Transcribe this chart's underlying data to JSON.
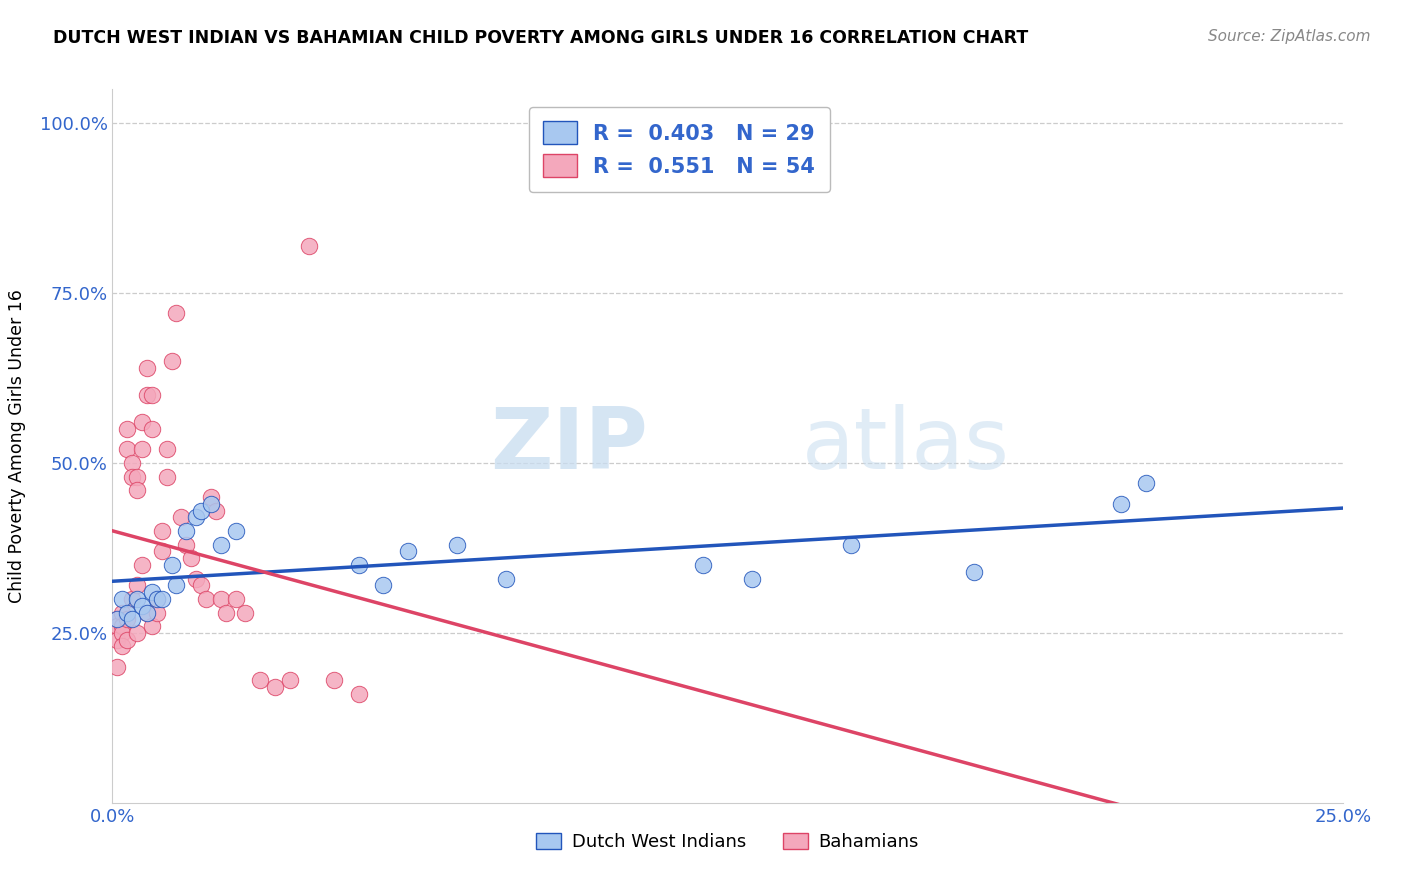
{
  "title": "DUTCH WEST INDIAN VS BAHAMIAN CHILD POVERTY AMONG GIRLS UNDER 16 CORRELATION CHART",
  "source": "Source: ZipAtlas.com",
  "ylabel": "Child Poverty Among Girls Under 16",
  "xlim": [
    0.0,
    0.25
  ],
  "ylim": [
    0.0,
    1.05
  ],
  "xticks": [
    0.0,
    0.05,
    0.1,
    0.15,
    0.2,
    0.25
  ],
  "xticklabels": [
    "0.0%",
    "",
    "",
    "",
    "",
    "25.0%"
  ],
  "yticks": [
    0.25,
    0.5,
    0.75,
    1.0
  ],
  "yticklabels": [
    "25.0%",
    "50.0%",
    "75.0%",
    "100.0%"
  ],
  "legend_labels": [
    "Dutch West Indians",
    "Bahamians"
  ],
  "R_blue": 0.403,
  "N_blue": 29,
  "R_pink": 0.551,
  "N_pink": 54,
  "blue_color": "#A8C8F0",
  "pink_color": "#F4A8BC",
  "blue_line_color": "#2255BB",
  "pink_line_color": "#DD4466",
  "watermark_zip": "ZIP",
  "watermark_atlas": "atlas",
  "blue_x": [
    0.001,
    0.002,
    0.003,
    0.004,
    0.005,
    0.006,
    0.007,
    0.008,
    0.009,
    0.01,
    0.012,
    0.013,
    0.015,
    0.017,
    0.018,
    0.02,
    0.022,
    0.025,
    0.05,
    0.055,
    0.06,
    0.07,
    0.08,
    0.12,
    0.13,
    0.15,
    0.175,
    0.205,
    0.21
  ],
  "blue_y": [
    0.27,
    0.3,
    0.28,
    0.27,
    0.3,
    0.29,
    0.28,
    0.31,
    0.3,
    0.3,
    0.35,
    0.32,
    0.4,
    0.42,
    0.43,
    0.44,
    0.38,
    0.4,
    0.35,
    0.32,
    0.37,
    0.38,
    0.33,
    0.35,
    0.33,
    0.38,
    0.34,
    0.44,
    0.47
  ],
  "pink_x": [
    0.001,
    0.001,
    0.001,
    0.001,
    0.002,
    0.002,
    0.002,
    0.002,
    0.003,
    0.003,
    0.003,
    0.003,
    0.004,
    0.004,
    0.004,
    0.005,
    0.005,
    0.005,
    0.005,
    0.006,
    0.006,
    0.006,
    0.007,
    0.007,
    0.007,
    0.008,
    0.008,
    0.008,
    0.009,
    0.009,
    0.01,
    0.01,
    0.011,
    0.011,
    0.012,
    0.013,
    0.014,
    0.015,
    0.016,
    0.017,
    0.018,
    0.019,
    0.02,
    0.021,
    0.022,
    0.023,
    0.025,
    0.027,
    0.03,
    0.033,
    0.036,
    0.04,
    0.045,
    0.05
  ],
  "pink_y": [
    0.27,
    0.26,
    0.24,
    0.2,
    0.28,
    0.26,
    0.25,
    0.23,
    0.55,
    0.52,
    0.27,
    0.24,
    0.5,
    0.48,
    0.3,
    0.48,
    0.46,
    0.32,
    0.25,
    0.56,
    0.52,
    0.35,
    0.64,
    0.6,
    0.28,
    0.6,
    0.55,
    0.26,
    0.3,
    0.28,
    0.4,
    0.37,
    0.52,
    0.48,
    0.65,
    0.72,
    0.42,
    0.38,
    0.36,
    0.33,
    0.32,
    0.3,
    0.45,
    0.43,
    0.3,
    0.28,
    0.3,
    0.28,
    0.18,
    0.17,
    0.18,
    0.82,
    0.18,
    0.16
  ]
}
